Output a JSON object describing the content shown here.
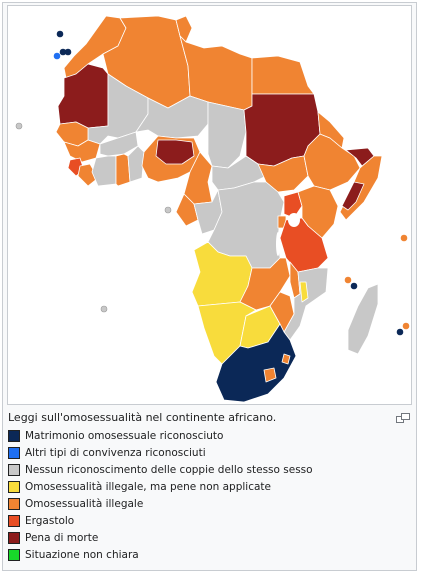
{
  "caption": "Leggi sull'omosessualità nel continente africano.",
  "enlarge_icon": "magnify-clip-icon",
  "legend": [
    {
      "label": "Matrimonio omosessuale riconosciuto",
      "color": "#0b2857"
    },
    {
      "label": "Altri tipi di convivenza riconosciuti",
      "color": "#1f6ff2"
    },
    {
      "label": "Nessun riconoscimento delle coppie dello stesso sesso",
      "color": "#c8c8c8"
    },
    {
      "label": "Omosessualità illegale, ma pene non applicate",
      "color": "#f8dc3c"
    },
    {
      "label": "Omosessualità illegale",
      "color": "#f08432"
    },
    {
      "label": "Ergastolo",
      "color": "#e84e24"
    },
    {
      "label": "Pena di morte",
      "color": "#8c1c1c"
    },
    {
      "label": "Situazione non chiara",
      "color": "#18d82a"
    }
  ],
  "colors": {
    "ocean": "#ffffff",
    "border": "#ffffff",
    "lake": "#ffffff"
  }
}
